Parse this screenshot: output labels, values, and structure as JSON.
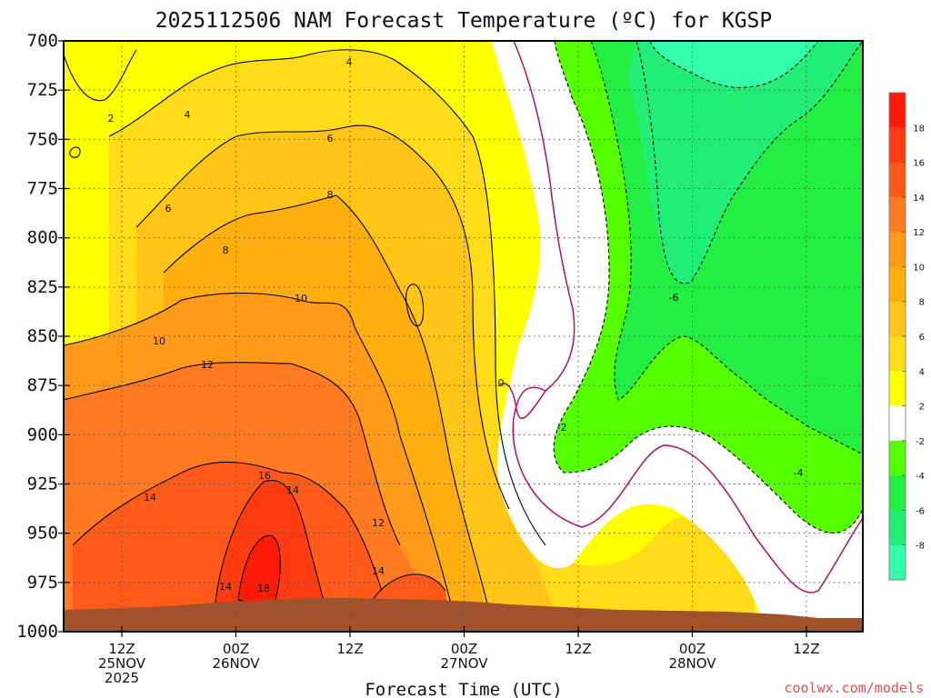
{
  "chart_data": {
    "type": "heatmap",
    "subtype": "time-height filled contour",
    "title": "2025112506 NAM Forecast Temperature (ºC) for KGSP",
    "xlabel": "Forecast Time (UTC)",
    "ylabel": "",
    "y_axis": {
      "values": [
        700,
        725,
        750,
        775,
        800,
        825,
        850,
        875,
        900,
        925,
        950,
        975,
        1000
      ],
      "labels": [
        "700",
        "725",
        "750",
        "775",
        "800",
        "825",
        "850",
        "875",
        "900",
        "925",
        "950",
        "975",
        "1000"
      ],
      "inverted": true
    },
    "x_axis": {
      "ticks": [
        {
          "lines": [
            "12Z",
            "25NOV",
            "2025"
          ]
        },
        {
          "lines": [
            "00Z",
            "26NOV"
          ]
        },
        {
          "lines": [
            "12Z"
          ]
        },
        {
          "lines": [
            "00Z",
            "27NOV"
          ]
        },
        {
          "lines": [
            "12Z"
          ]
        },
        {
          "lines": [
            "00Z",
            "28NOV"
          ]
        },
        {
          "lines": [
            "12Z"
          ]
        }
      ]
    },
    "grid": true,
    "colorbar": {
      "placement": "right",
      "bins": [
        {
          "from": 18,
          "to": 20,
          "color": "#ff1a0a"
        },
        {
          "from": 16,
          "to": 18,
          "color": "#ff3b12"
        },
        {
          "from": 14,
          "to": 16,
          "color": "#ff5a1a"
        },
        {
          "from": 12,
          "to": 14,
          "color": "#ff7a20"
        },
        {
          "from": 10,
          "to": 12,
          "color": "#ff9a1a"
        },
        {
          "from": 8,
          "to": 10,
          "color": "#ffae10"
        },
        {
          "from": 6,
          "to": 8,
          "color": "#ffc418"
        },
        {
          "from": 4,
          "to": 6,
          "color": "#ffdc1a"
        },
        {
          "from": 2,
          "to": 4,
          "color": "#ffff00"
        },
        {
          "from": -2,
          "to": 2,
          "color": "#ffffff"
        },
        {
          "from": -4,
          "to": -2,
          "color": "#55ff00"
        },
        {
          "from": -6,
          "to": -4,
          "color": "#22ee44"
        },
        {
          "from": -8,
          "to": -6,
          "color": "#22ee77"
        },
        {
          "from": -10,
          "to": -8,
          "color": "#33ffaa"
        }
      ],
      "tick_labels": [
        "18",
        "16",
        "14",
        "12",
        "10",
        "8",
        "6",
        "4",
        "2",
        "-2",
        "-4",
        "-6",
        "-8"
      ]
    },
    "contour_labels": [
      "2",
      "4",
      "4",
      "6",
      "6",
      "8",
      "8",
      "10",
      "10",
      "12",
      "12",
      "14",
      "14",
      "14",
      "16",
      "18",
      "14",
      "0",
      "-2",
      "-6",
      "-4"
    ],
    "colors": {
      "ground": "#a0522d",
      "freezing_line": "#b0106a",
      "credit": "#e05050"
    }
  },
  "credit": "coolwx.com/models"
}
